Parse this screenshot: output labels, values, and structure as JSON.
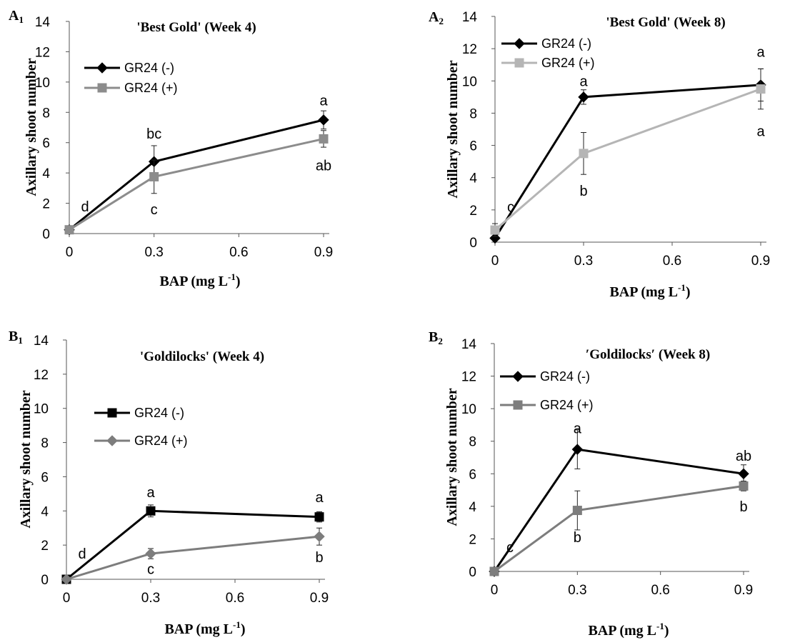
{
  "chart_data": [
    {
      "panel": "A",
      "panel_sub": "1",
      "type": "line",
      "title": "'Best Gold' (Week 4)",
      "xlabel": "BAP (mg L",
      "xlabel_sup": "-1",
      "xlabel_end": ")",
      "ylabel": "Axillary shoot number",
      "x": [
        0,
        0.3,
        0.9
      ],
      "xticks": [
        "0",
        "0.3",
        "0.6",
        "0.9"
      ],
      "xlim": [
        0,
        0.9
      ],
      "yticks": [
        "0",
        "2",
        "4",
        "6",
        "8",
        "10",
        "12",
        "14"
      ],
      "ylim": [
        0,
        14
      ],
      "series": [
        {
          "name": "GR24 (-)",
          "marker": "diamond",
          "color": "#000000",
          "values": [
            0.25,
            4.75,
            7.5
          ],
          "errors": [
            0,
            1.05,
            0.6
          ]
        },
        {
          "name": "GR24 (+)",
          "marker": "square",
          "color": "#8c8c8c",
          "values": [
            0.25,
            3.75,
            6.25
          ],
          "errors": [
            0,
            1.1,
            0.55
          ]
        }
      ],
      "annotations": [
        {
          "text": "d",
          "x": 0,
          "y": 1.8
        },
        {
          "text": "bc",
          "x": 0.3,
          "y": 6.6
        },
        {
          "text": "c",
          "x": 0.3,
          "y": 1.6
        },
        {
          "text": "a",
          "x": 0.9,
          "y": 8.8
        },
        {
          "text": "ab",
          "x": 0.9,
          "y": 4.5
        }
      ]
    },
    {
      "panel": "A",
      "panel_sub": "2",
      "type": "line",
      "title": "'Best Gold' (Week 8)",
      "xlabel": "BAP (mg L",
      "xlabel_sup": "-1",
      "xlabel_end": ")",
      "ylabel": "Axillary shoot number",
      "x": [
        0,
        0.3,
        0.9
      ],
      "xticks": [
        "0",
        "0.3",
        "0.6",
        "0.9"
      ],
      "xlim": [
        0,
        0.9
      ],
      "yticks": [
        "0",
        "2",
        "4",
        "6",
        "8",
        "10",
        "12",
        "14"
      ],
      "ylim": [
        0,
        14
      ],
      "series": [
        {
          "name": "GR24 (-)",
          "marker": "diamond",
          "color": "#000000",
          "values": [
            0.25,
            9.0,
            9.75
          ],
          "errors": [
            0,
            0.45,
            1.0
          ]
        },
        {
          "name": "GR24 (+)",
          "marker": "square",
          "color": "#b5b5b5",
          "values": [
            0.75,
            5.5,
            9.5
          ],
          "errors": [
            0.4,
            1.3,
            1.25
          ]
        }
      ],
      "annotations": [
        {
          "text": "c",
          "x": 0,
          "y": 2.2
        },
        {
          "text": "a",
          "x": 0.3,
          "y": 10.0
        },
        {
          "text": "b",
          "x": 0.3,
          "y": 3.2
        },
        {
          "text": "a",
          "x": 0.9,
          "y": 11.8
        },
        {
          "text": "a",
          "x": 0.9,
          "y": 6.9
        }
      ]
    },
    {
      "panel": "B",
      "panel_sub": "1",
      "type": "line",
      "title": "'Goldilocks' (Week 4)",
      "xlabel": "BAP (mg L",
      "xlabel_sup": "-1",
      "xlabel_end": ")",
      "ylabel": "Axillary shoot number",
      "x": [
        0,
        0.3,
        0.9
      ],
      "xticks": [
        "0",
        "0.3",
        "0.6",
        "0.9"
      ],
      "xlim": [
        0,
        0.9
      ],
      "yticks": [
        "0",
        "2",
        "4",
        "6",
        "8",
        "10",
        "12",
        "14"
      ],
      "ylim": [
        0,
        14
      ],
      "series": [
        {
          "name": "GR24 (-)",
          "marker": "square",
          "color": "#000000",
          "values": [
            0,
            4.0,
            3.65
          ],
          "errors": [
            0,
            0.35,
            0.3
          ]
        },
        {
          "name": "GR24 (+)",
          "marker": "diamond",
          "color": "#7d7d7d",
          "values": [
            0,
            1.5,
            2.5
          ],
          "errors": [
            0,
            0.3,
            0.5
          ]
        }
      ],
      "annotations": [
        {
          "text": "d",
          "x": 0,
          "y": 1.5
        },
        {
          "text": "a",
          "x": 0.3,
          "y": 5.1
        },
        {
          "text": "c",
          "x": 0.3,
          "y": 0.6
        },
        {
          "text": "a",
          "x": 0.9,
          "y": 4.8
        },
        {
          "text": "b",
          "x": 0.9,
          "y": 1.3
        }
      ]
    },
    {
      "panel": "B",
      "panel_sub": "2",
      "type": "line",
      "title": "′Goldilocks′ (Week 8)",
      "xlabel": "BAP (mg L",
      "xlabel_sup": "-1",
      "xlabel_end": ")",
      "ylabel": "Axillary shoot number",
      "x": [
        0,
        0.3,
        0.9
      ],
      "xticks": [
        "0",
        "0.3",
        "0.6",
        "0.9"
      ],
      "xlim": [
        0,
        0.9
      ],
      "yticks": [
        "0",
        "2",
        "4",
        "6",
        "8",
        "10",
        "12",
        "14"
      ],
      "ylim": [
        0,
        14
      ],
      "series": [
        {
          "name": "GR24 (-)",
          "marker": "diamond",
          "color": "#000000",
          "values": [
            0,
            7.5,
            6.0
          ],
          "errors": [
            0,
            1.2,
            0.55
          ]
        },
        {
          "name": "GR24 (+)",
          "marker": "square",
          "color": "#7d7d7d",
          "values": [
            0,
            3.75,
            5.25
          ],
          "errors": [
            0,
            1.2,
            0.3
          ]
        }
      ],
      "annotations": [
        {
          "text": "c",
          "x": 0,
          "y": 1.5
        },
        {
          "text": "a",
          "x": 0.3,
          "y": 8.8
        },
        {
          "text": "b",
          "x": 0.3,
          "y": 2.1
        },
        {
          "text": "ab",
          "x": 0.9,
          "y": 7.1
        },
        {
          "text": "b",
          "x": 0.9,
          "y": 4.0
        }
      ]
    }
  ]
}
